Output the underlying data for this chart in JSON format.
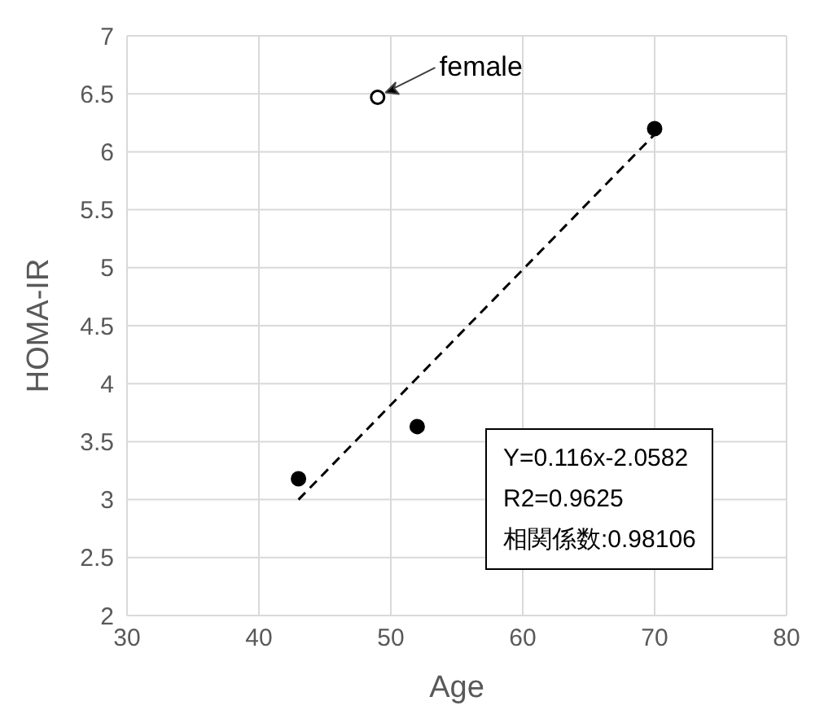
{
  "chart_data": {
    "type": "scatter",
    "xlabel": "Age",
    "ylabel": "HOMA-IR",
    "xlim": [
      30,
      80
    ],
    "xticks": [
      30,
      40,
      50,
      60,
      70,
      80
    ],
    "ylim": [
      2,
      7
    ],
    "yticks": [
      2,
      2.5,
      3,
      3.5,
      4,
      4.5,
      5,
      5.5,
      6,
      6.5,
      7
    ],
    "grid": true,
    "legend": false,
    "marker": "circle",
    "series": [
      {
        "color": "#000000",
        "x": [
          43,
          52,
          70
        ],
        "values": [
          3.18,
          3.63,
          6.2
        ]
      },
      {
        "color": "#ffffff",
        "x": [
          49
        ],
        "values": [
          6.47
        ]
      },
      {
        "type": "line",
        "color": "#000000",
        "line_style": "dashed",
        "marker": "none",
        "x": [
          43,
          70
        ],
        "values": [
          3.0,
          6.15
        ]
      }
    ],
    "annotations": [
      {
        "text": "female",
        "x": 49,
        "y": 6.47
      },
      "Y=0.116x-2.0582",
      "R2=0.9625",
      "相関係数:0.98106"
    ]
  }
}
